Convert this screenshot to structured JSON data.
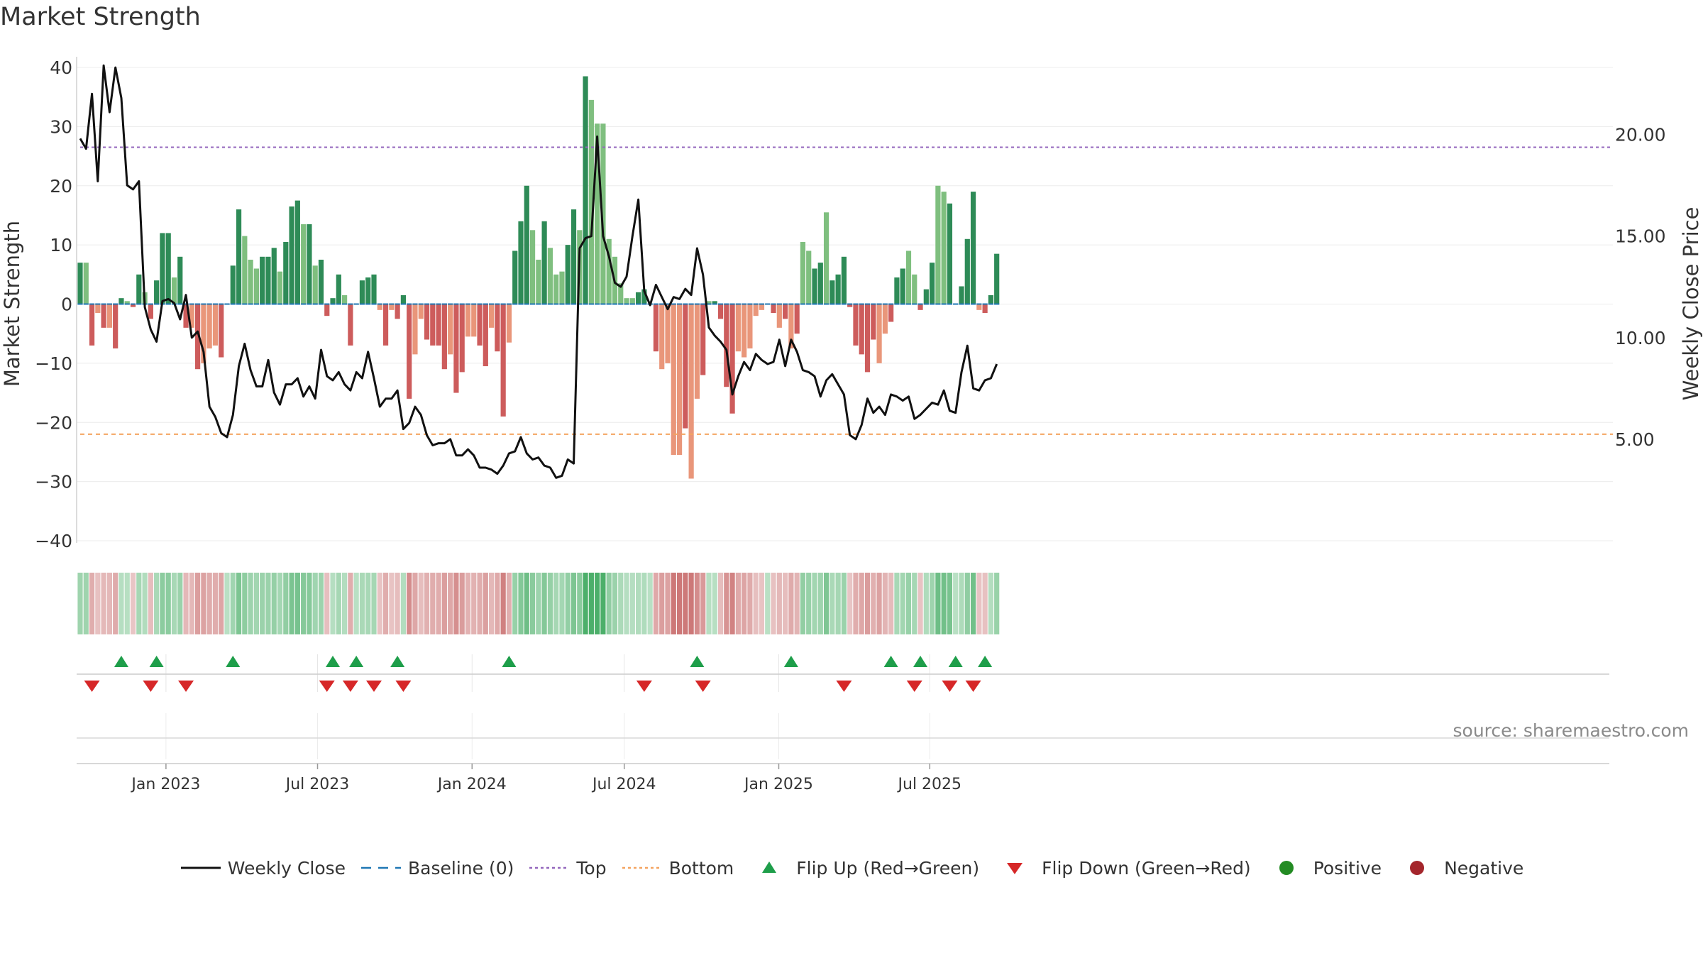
{
  "title": "Market Strength",
  "source": "source: sharemaestro.com",
  "legend": [
    {
      "label": "Weekly Close",
      "symbol": "line-black"
    },
    {
      "label": "Baseline (0)",
      "symbol": "dash-blue"
    },
    {
      "label": "Top",
      "symbol": "dot-purple"
    },
    {
      "label": "Bottom",
      "symbol": "dot-orange"
    },
    {
      "label": "Flip Up (Red→Green)",
      "symbol": "triangle-up-green"
    },
    {
      "label": "Flip Down (Green→Red)",
      "symbol": "triangle-down-red"
    },
    {
      "label": "Positive",
      "symbol": "circle-green"
    },
    {
      "label": "Negative",
      "symbol": "circle-red"
    }
  ],
  "colors": {
    "pos_strong": "#2e8b57",
    "pos_weak": "#7fbf7f",
    "neg_strong": "#cd5c5c",
    "neg_weak": "#e9967a",
    "line": "#111111",
    "baseline": "#1f77b4",
    "top": "#9467bd",
    "bottom": "#f4a460",
    "flip_up": "#1e9e4a",
    "flip_down": "#d62728"
  },
  "chart_data": {
    "type": "bar+line",
    "xlabel": "",
    "ylabel_left": "Market Strength",
    "ylabel_right": "Weekly Close Price",
    "ylim_left": [
      -40,
      40
    ],
    "yticks_left": [
      "40",
      "30",
      "20",
      "10",
      "0",
      "−10",
      "−20",
      "−30",
      "−40"
    ],
    "ylim_right": [
      0,
      23.2
    ],
    "yticks_right": [
      {
        "value": 5,
        "label": "5.00"
      },
      {
        "value": 10,
        "label": "10.00"
      },
      {
        "value": 15,
        "label": "15.00"
      },
      {
        "value": 20,
        "label": "20.00"
      }
    ],
    "top_level": 26.5,
    "bottom_level": -22,
    "x_ticks": [
      {
        "week": 14.6,
        "label": "Jan 2023"
      },
      {
        "week": 40.4,
        "label": "Jul 2023"
      },
      {
        "week": 66.7,
        "label": "Jan 2024"
      },
      {
        "week": 92.6,
        "label": "Jul 2024"
      },
      {
        "week": 118.9,
        "label": "Jan 2025"
      },
      {
        "week": 144.6,
        "label": "Jul 2025"
      }
    ],
    "strength": [
      7,
      7,
      -7,
      -1.5,
      -4,
      -4,
      -7.5,
      1,
      0.5,
      -0.5,
      5,
      2,
      -2.5,
      4,
      12,
      12,
      4.5,
      8,
      -4,
      -4,
      -11,
      -10,
      -7.5,
      -7,
      -9,
      0,
      6.5,
      16,
      11.5,
      7.5,
      6,
      8,
      8,
      9.5,
      5.5,
      10.5,
      16.5,
      17.5,
      13.5,
      13.5,
      6.5,
      7.5,
      -2,
      1,
      5,
      1.5,
      -7,
      0,
      4,
      4.5,
      5,
      -1,
      -7,
      -1,
      -2.5,
      1.5,
      -16,
      -8.5,
      -2.5,
      -6,
      -7,
      -7,
      -11,
      -8.5,
      -15,
      -11.5,
      -5.5,
      -5.5,
      -7,
      -10.5,
      -4,
      -8,
      -19,
      -6.5,
      9,
      14,
      20,
      12.5,
      7.5,
      14,
      9.5,
      5,
      5.5,
      10,
      16,
      12.5,
      38.5,
      34.5,
      30.5,
      30.5,
      11,
      8,
      3.5,
      1,
      1,
      2,
      2.5,
      0,
      -8,
      -11,
      -10,
      -25.5,
      -25.5,
      -21,
      -29.5,
      -16,
      -12,
      0.5,
      0.5,
      -2.5,
      -14,
      -18.5,
      -8,
      -9,
      -7.5,
      -2,
      -1,
      0,
      -1.5,
      -4,
      -2.5,
      -7.5,
      -5,
      10.5,
      9,
      6,
      7,
      15.5,
      4,
      5,
      8,
      -0.5,
      -7,
      -8.5,
      -11.5,
      -6,
      -10,
      -5,
      -3,
      4.5,
      6,
      9,
      5,
      -1,
      2.5,
      7,
      20,
      19,
      17,
      0,
      3,
      11,
      19,
      -1,
      -1.5,
      1.5,
      8.5
    ],
    "weak": [
      0,
      1,
      0,
      1,
      0,
      1,
      0,
      0,
      1,
      0,
      0,
      1,
      0,
      0,
      0,
      0,
      1,
      0,
      0,
      1,
      0,
      1,
      1,
      1,
      0,
      0,
      0,
      0,
      1,
      1,
      1,
      0,
      0,
      0,
      1,
      0,
      0,
      0,
      1,
      0,
      1,
      0,
      0,
      0,
      0,
      1,
      0,
      0,
      0,
      0,
      0,
      1,
      0,
      1,
      0,
      0,
      0,
      1,
      1,
      0,
      0,
      0,
      0,
      1,
      0,
      0,
      1,
      1,
      0,
      0,
      1,
      0,
      0,
      1,
      0,
      0,
      0,
      1,
      1,
      0,
      1,
      1,
      1,
      0,
      0,
      1,
      0,
      1,
      1,
      1,
      1,
      1,
      1,
      1,
      1,
      0,
      0,
      1,
      0,
      1,
      1,
      1,
      1,
      0,
      1,
      1,
      0,
      1,
      0,
      0,
      0,
      0,
      1,
      1,
      1,
      1,
      1,
      0,
      0,
      1,
      0,
      1,
      0,
      1,
      1,
      0,
      0,
      1,
      0,
      0,
      0,
      0,
      0,
      0,
      0,
      0,
      1,
      1,
      0,
      0,
      0,
      1,
      1,
      0,
      0,
      0,
      1,
      1,
      0,
      0,
      0,
      0,
      0,
      1,
      0,
      0,
      0,
      0
    ],
    "close": [
      19.8,
      19.3,
      22.0,
      17.7,
      23.4,
      21.1,
      23.3,
      21.8,
      17.5,
      17.3,
      17.7,
      11.5,
      10.4,
      9.8,
      11.8,
      11.9,
      11.7,
      10.9,
      12.1,
      10.0,
      10.3,
      9.3,
      6.6,
      6.1,
      5.3,
      5.1,
      6.2,
      8.6,
      9.7,
      8.4,
      7.6,
      7.6,
      8.9,
      7.3,
      6.7,
      7.7,
      7.7,
      8.0,
      7.1,
      7.6,
      7.0,
      9.4,
      8.1,
      7.9,
      8.3,
      7.7,
      7.4,
      8.3,
      8.0,
      9.3,
      8.0,
      6.6,
      7.0,
      7.0,
      7.4,
      5.5,
      5.8,
      6.6,
      6.2,
      5.2,
      4.7,
      4.8,
      4.8,
      5.0,
      4.2,
      4.2,
      4.5,
      4.2,
      3.6,
      3.6,
      3.5,
      3.3,
      3.7,
      4.3,
      4.4,
      5.1,
      4.3,
      4.0,
      4.1,
      3.7,
      3.6,
      3.1,
      3.2,
      4.0,
      3.8,
      14.4,
      14.9,
      15.0,
      19.9,
      15.0,
      14.0,
      12.7,
      12.5,
      13.0,
      15.0,
      16.8,
      12.3,
      11.6,
      12.6,
      12.0,
      11.4,
      12.0,
      11.9,
      12.4,
      12.1,
      14.4,
      13.1,
      10.5,
      10.1,
      9.8,
      9.4,
      7.2,
      8.1,
      8.8,
      8.4,
      9.2,
      8.9,
      8.7,
      8.8,
      9.9,
      8.6,
      9.9,
      9.3,
      8.4,
      8.3,
      8.1,
      7.1,
      7.9,
      8.2,
      7.7,
      7.2,
      5.2,
      5.0,
      5.7,
      7.0,
      6.3,
      6.6,
      6.2,
      7.2,
      7.1,
      6.9,
      7.1,
      6.0,
      6.2,
      6.5,
      6.8,
      6.7,
      7.4,
      6.4,
      6.3,
      8.3,
      9.6,
      7.5,
      7.4,
      7.9,
      8.0,
      8.7
    ],
    "flip_up_weeks": [
      7,
      13,
      26,
      43,
      47,
      54,
      73,
      105,
      121,
      138,
      143,
      149,
      154
    ],
    "flip_down_weeks": [
      2,
      12,
      18,
      42,
      46,
      50,
      55,
      96,
      106,
      130,
      142,
      148,
      152
    ],
    "positive_count_label": "Positive",
    "negative_count_label": "Negative"
  }
}
